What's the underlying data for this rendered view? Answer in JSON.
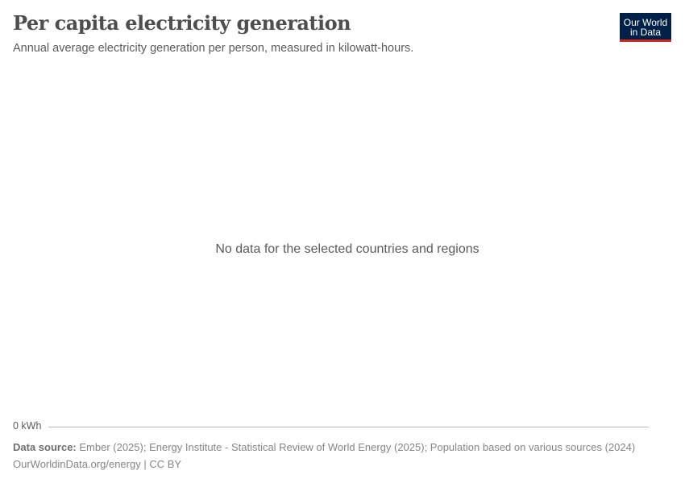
{
  "header": {
    "title": "Per capita electricity generation",
    "subtitle": "Annual average electricity generation per person, measured in kilowatt-hours.",
    "logo": "Our World in Data",
    "logo_line1": "Our World",
    "logo_line2": "in Data",
    "logo_colors": {
      "background": "#002147",
      "accent": "#ce261e"
    }
  },
  "chart_data": {
    "type": "line",
    "title": "Per capita electricity generation",
    "message": "No data for the selected countries and regions",
    "y_ticks": [
      "0 kWh"
    ],
    "series": []
  },
  "footer": {
    "source_label": "Data source:",
    "source_text": " Ember (2025); Energy Institute - Statistical Review of World Energy (2025); Population based on various sources (2024)",
    "url": "OurWorldinData.org/energy",
    "license": " | CC BY"
  }
}
